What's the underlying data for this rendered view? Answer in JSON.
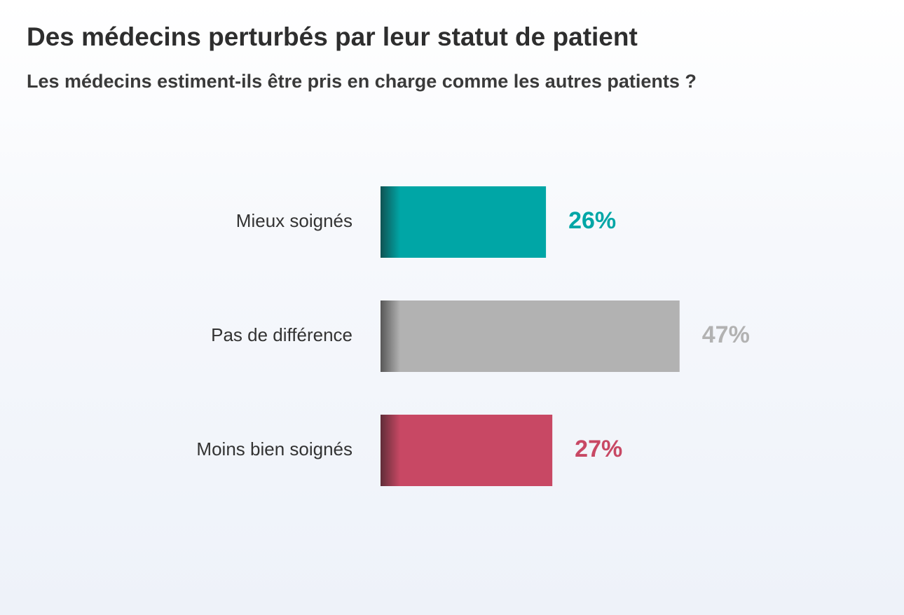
{
  "chart_data": {
    "type": "bar",
    "title": "Des médecins perturbés par leur statut de patient",
    "subtitle": "Les médecins estiment-ils être pris en charge comme les autres patients ?",
    "categories": [
      "Mieux soignés",
      "Pas de différence",
      "Moins bien soignés"
    ],
    "values": [
      26,
      47,
      27
    ],
    "value_labels": [
      "26%",
      "47%",
      "27%"
    ],
    "colors": [
      "#00a6a6",
      "#b2b2b2",
      "#c84864"
    ]
  }
}
